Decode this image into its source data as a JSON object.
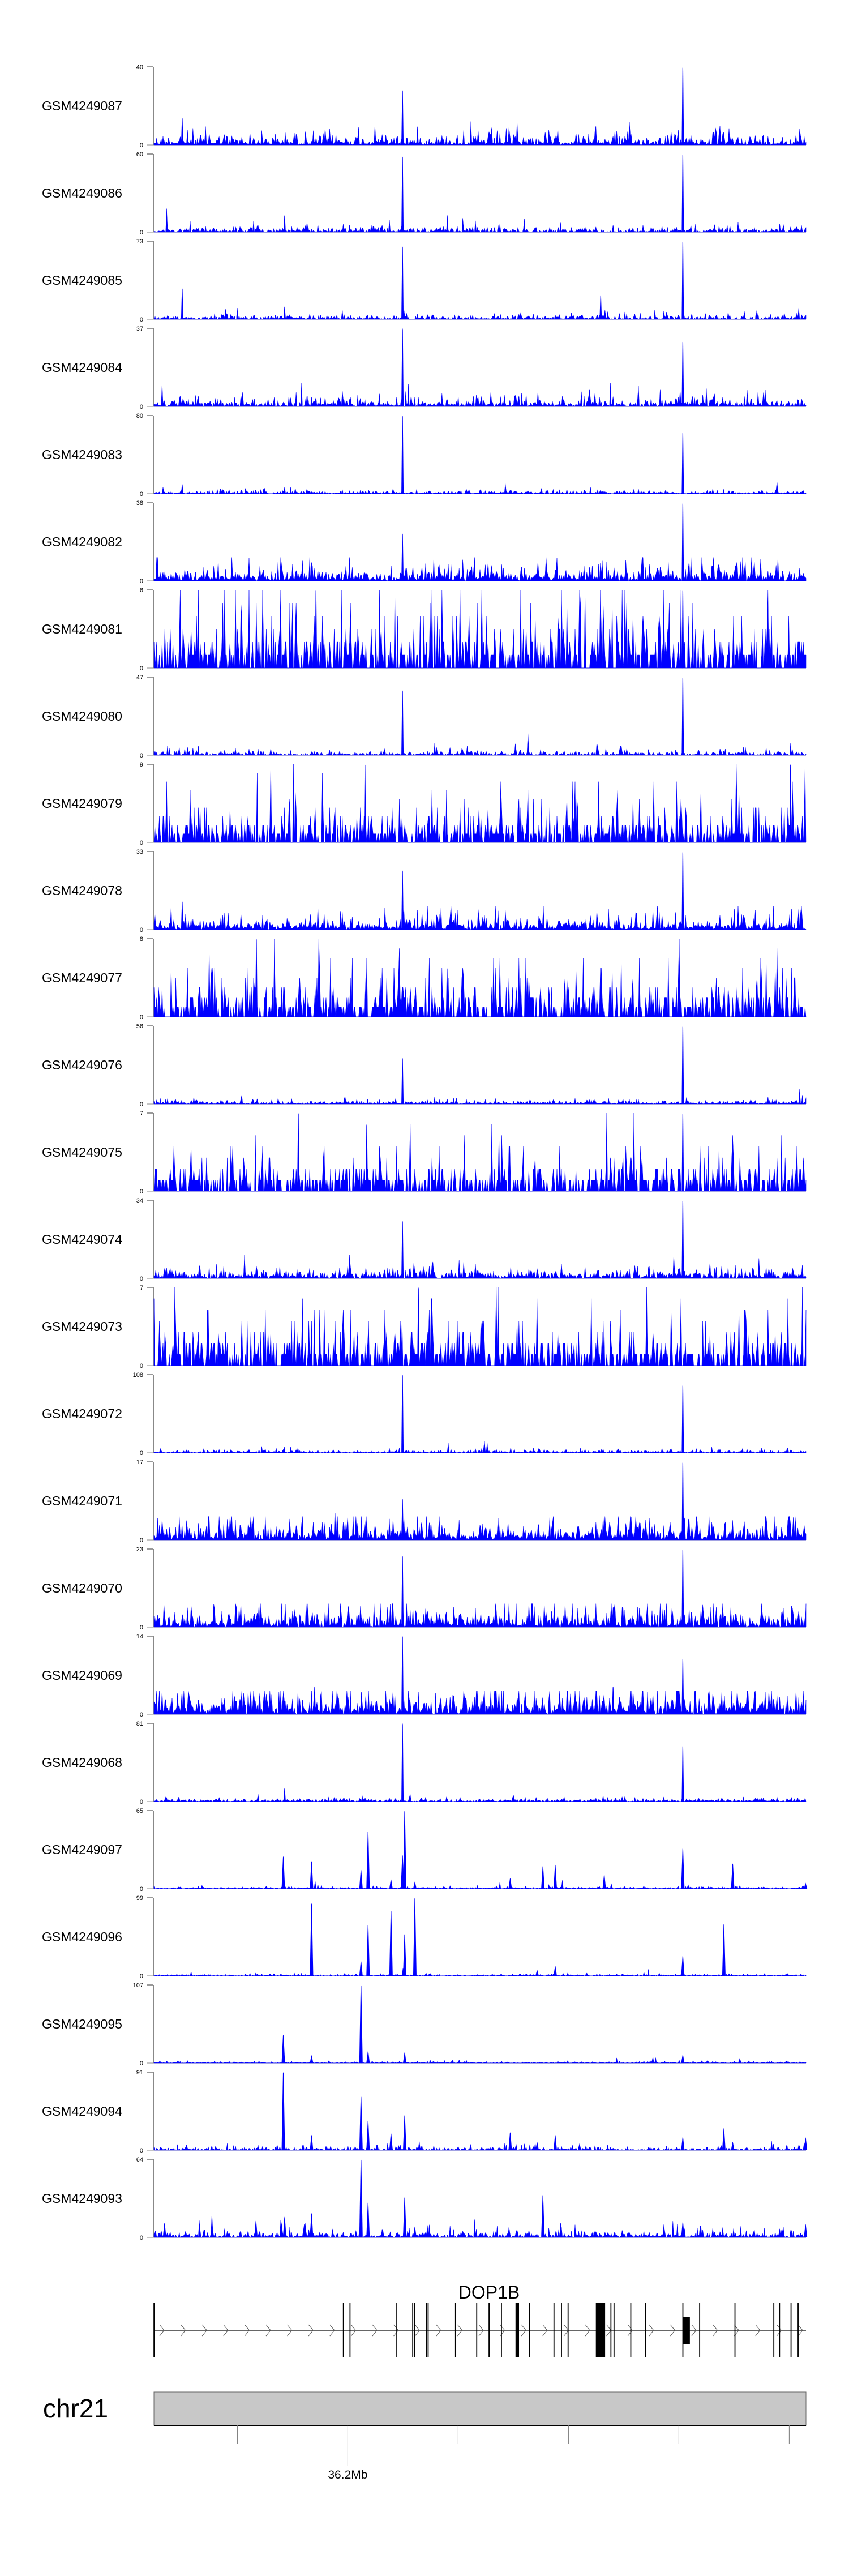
{
  "chart_data": {
    "type": "area",
    "title": "",
    "region": {
      "chrom": "chr21",
      "start_mb": 36.1561,
      "end_mb": 36.3038
    },
    "colors": {
      "signal": "#0000ff",
      "axis": "#888888",
      "ideogram": "#c8c8c8",
      "gene": "#000000"
    },
    "tracks": [
      {
        "name": "GSM4249087",
        "ylim": [
          0,
          40
        ],
        "background": 2,
        "style": "continuous",
        "peaks": [
          [
            36.2124,
            28
          ],
          [
            36.2759,
            40
          ],
          [
            36.1625,
            14
          ]
        ]
      },
      {
        "name": "GSM4249086",
        "ylim": [
          0,
          60
        ],
        "background": 1.5,
        "style": "continuous",
        "peaks": [
          [
            36.2124,
            58
          ],
          [
            36.2759,
            60
          ],
          [
            36.1857,
            13
          ]
        ]
      },
      {
        "name": "GSM4249085",
        "ylim": [
          0,
          73
        ],
        "background": 1.5,
        "style": "continuous",
        "peaks": [
          [
            36.2124,
            68
          ],
          [
            36.2759,
            73
          ],
          [
            36.1625,
            29
          ],
          [
            36.1857,
            12
          ],
          [
            36.2573,
            23
          ]
        ]
      },
      {
        "name": "GSM4249084",
        "ylim": [
          0,
          37
        ],
        "background": 1.5,
        "style": "continuous",
        "peaks": [
          [
            36.2124,
            37
          ],
          [
            36.2759,
            31
          ]
        ]
      },
      {
        "name": "GSM4249083",
        "ylim": [
          0,
          80
        ],
        "background": 1.2,
        "style": "continuous",
        "peaks": [
          [
            36.2124,
            80
          ],
          [
            36.2759,
            63
          ],
          [
            36.1625,
            10
          ],
          [
            36.1857,
            7
          ]
        ]
      },
      {
        "name": "GSM4249082",
        "ylim": [
          0,
          38
        ],
        "background": 2.5,
        "style": "continuous",
        "peaks": [
          [
            36.2124,
            23
          ],
          [
            36.2759,
            38
          ]
        ]
      },
      {
        "name": "GSM4249081",
        "ylim": [
          0,
          6
        ],
        "background": 1.5,
        "style": "integer",
        "peaks": [
          [
            36.1928,
            6
          ],
          [
            36.2759,
            6
          ]
        ]
      },
      {
        "name": "GSM4249080",
        "ylim": [
          0,
          47
        ],
        "background": 1,
        "style": "continuous",
        "peaks": [
          [
            36.2124,
            39
          ],
          [
            36.2759,
            47
          ]
        ]
      },
      {
        "name": "GSM4249079",
        "ylim": [
          0,
          9
        ],
        "background": 1.5,
        "style": "integer",
        "peaks": [
          [
            36.2039,
            9
          ],
          [
            36.3003,
            9
          ]
        ]
      },
      {
        "name": "GSM4249078",
        "ylim": [
          0,
          33
        ],
        "background": 2,
        "style": "continuous",
        "peaks": [
          [
            36.2124,
            25
          ],
          [
            36.2759,
            33
          ],
          [
            36.1625,
            12
          ]
        ]
      },
      {
        "name": "GSM4249077",
        "ylim": [
          0,
          8
        ],
        "background": 1.5,
        "style": "integer",
        "peaks": [
          [
            36.1793,
            8
          ],
          [
            36.2225,
            5
          ]
        ]
      },
      {
        "name": "GSM4249076",
        "ylim": [
          0,
          56
        ],
        "background": 1,
        "style": "continuous",
        "peaks": [
          [
            36.2124,
            33
          ],
          [
            36.2759,
            56
          ]
        ]
      },
      {
        "name": "GSM4249075",
        "ylim": [
          0,
          7
        ],
        "background": 1.2,
        "style": "integer",
        "peaks": [
          [
            36.1888,
            7
          ],
          [
            36.2043,
            6
          ],
          [
            36.2759,
            7
          ]
        ]
      },
      {
        "name": "GSM4249074",
        "ylim": [
          0,
          34
        ],
        "background": 1.5,
        "style": "continuous",
        "peaks": [
          [
            36.2124,
            25
          ],
          [
            36.2759,
            34
          ]
        ]
      },
      {
        "name": "GSM4249073",
        "ylim": [
          0,
          7
        ],
        "background": 1.5,
        "style": "integer",
        "peaks": [
          [
            36.216,
            7
          ]
        ]
      },
      {
        "name": "GSM4249072",
        "ylim": [
          0,
          108
        ],
        "background": 1.5,
        "style": "continuous",
        "peaks": [
          [
            36.2124,
            108
          ],
          [
            36.2759,
            94
          ]
        ]
      },
      {
        "name": "GSM4249071",
        "ylim": [
          0,
          17
        ],
        "background": 1.5,
        "style": "continuous",
        "peaks": [
          [
            36.2124,
            9
          ],
          [
            36.2759,
            17
          ],
          [
            36.1971,
            6
          ]
        ]
      },
      {
        "name": "GSM4249070",
        "ylim": [
          0,
          23
        ],
        "background": 2,
        "style": "continuous",
        "peaks": [
          [
            36.2124,
            21
          ],
          [
            36.2759,
            23
          ]
        ]
      },
      {
        "name": "GSM4249069",
        "ylim": [
          0,
          14
        ],
        "background": 1.5,
        "style": "continuous",
        "peaks": [
          [
            36.2124,
            14
          ],
          [
            36.2759,
            10
          ],
          [
            36.1925,
            5
          ],
          [
            36.2601,
            5
          ]
        ]
      },
      {
        "name": "GSM4249068",
        "ylim": [
          0,
          81
        ],
        "background": 1.2,
        "style": "continuous",
        "peaks": [
          [
            36.2124,
            81
          ],
          [
            36.2759,
            58
          ],
          [
            36.1857,
            14
          ]
        ]
      },
      {
        "name": "GSM4249097",
        "ylim": [
          0,
          65
        ],
        "background": 0.6,
        "style": "continuous",
        "peaks": [
          [
            36.1854,
            27
          ],
          [
            36.1918,
            23
          ],
          [
            36.203,
            16
          ],
          [
            36.2046,
            48
          ],
          [
            36.2098,
            8
          ],
          [
            36.2124,
            28
          ],
          [
            36.2129,
            65
          ],
          [
            36.2152,
            6
          ],
          [
            36.2368,
            9
          ],
          [
            36.2442,
            19
          ],
          [
            36.247,
            20
          ],
          [
            36.2581,
            12
          ],
          [
            36.2759,
            34
          ],
          [
            36.2872,
            21
          ],
          [
            36.3037,
            5
          ]
        ]
      },
      {
        "name": "GSM4249096",
        "ylim": [
          0,
          99
        ],
        "background": 0.8,
        "style": "continuous",
        "peaks": [
          [
            36.1918,
            92
          ],
          [
            36.203,
            19
          ],
          [
            36.2046,
            65
          ],
          [
            36.2098,
            83
          ],
          [
            36.2129,
            53
          ],
          [
            36.2152,
            99
          ],
          [
            36.2429,
            8
          ],
          [
            36.247,
            13
          ],
          [
            36.2759,
            26
          ],
          [
            36.2852,
            66
          ]
        ]
      },
      {
        "name": "GSM4249095",
        "ylim": [
          0,
          107
        ],
        "background": 0.8,
        "style": "continuous",
        "peaks": [
          [
            36.1854,
            39
          ],
          [
            36.1918,
            11
          ],
          [
            36.203,
            107
          ],
          [
            36.2046,
            17
          ],
          [
            36.2129,
            15
          ],
          [
            36.2759,
            12
          ],
          [
            36.2888,
            7
          ]
        ]
      },
      {
        "name": "GSM4249094",
        "ylim": [
          0,
          91
        ],
        "background": 1.5,
        "style": "continuous",
        "peaks": [
          [
            36.1854,
            91
          ],
          [
            36.1918,
            18
          ],
          [
            36.203,
            63
          ],
          [
            36.2046,
            35
          ],
          [
            36.2098,
            20
          ],
          [
            36.2129,
            41
          ],
          [
            36.2368,
            21
          ],
          [
            36.2429,
            10
          ],
          [
            36.247,
            18
          ],
          [
            36.2525,
            8
          ],
          [
            36.2759,
            16
          ],
          [
            36.2852,
            26
          ],
          [
            36.2872,
            10
          ],
          [
            36.3037,
            15
          ]
        ]
      },
      {
        "name": "GSM4249093",
        "ylim": [
          0,
          64
        ],
        "background": 2,
        "style": "continuous",
        "peaks": [
          [
            36.1585,
            12
          ],
          [
            36.1792,
            14
          ],
          [
            36.1857,
            17
          ],
          [
            36.1918,
            20
          ],
          [
            36.203,
            64
          ],
          [
            36.2046,
            29
          ],
          [
            36.2129,
            33
          ],
          [
            36.2152,
            9
          ],
          [
            36.2442,
            35
          ],
          [
            36.2759,
            13
          ],
          [
            36.3037,
            11
          ]
        ]
      }
    ],
    "gene": {
      "name": "DOP1B",
      "strand": "+",
      "start_mb": 36.1561,
      "end_mb": 36.3038,
      "exons_mb": [
        [
          36.1561,
          36.1562
        ],
        [
          36.199,
          36.1991
        ],
        [
          36.2005,
          36.2006
        ],
        [
          36.2111,
          36.2112
        ],
        [
          36.2147,
          36.2148
        ],
        [
          36.2151,
          36.2152
        ],
        [
          36.2178,
          36.2179
        ],
        [
          36.2182,
          36.2183
        ],
        [
          36.2244,
          36.2245
        ],
        [
          36.2292,
          36.2293
        ],
        [
          36.232,
          36.2321
        ],
        [
          36.2348,
          36.2349
        ],
        [
          36.2381,
          36.2389
        ],
        [
          36.2412,
          36.2413
        ],
        [
          36.2467,
          36.2468
        ],
        [
          36.2484,
          36.2485
        ],
        [
          36.2499,
          36.25
        ],
        [
          36.2563,
          36.2584
        ],
        [
          36.2596,
          36.2597
        ],
        [
          36.2603,
          36.2604
        ],
        [
          36.2641,
          36.2642
        ],
        [
          36.2674,
          36.2675
        ],
        [
          36.2759,
          36.276
        ],
        [
          36.2797,
          36.2798
        ],
        [
          36.2877,
          36.2878
        ],
        [
          36.2965,
          36.2966
        ],
        [
          36.2978,
          36.2979
        ],
        [
          36.3004,
          36.3005
        ],
        [
          36.302,
          36.3021
        ]
      ],
      "utr_mb": [
        [
          36.2759,
          36.2775
        ]
      ]
    },
    "axis": {
      "chrom_label": "chr21",
      "ticks_mb": [
        36.175,
        36.2,
        36.225,
        36.25,
        36.275,
        36.3
      ],
      "labeled_tick_mb": 36.2,
      "labeled_tick_text": "36.2Mb"
    }
  }
}
